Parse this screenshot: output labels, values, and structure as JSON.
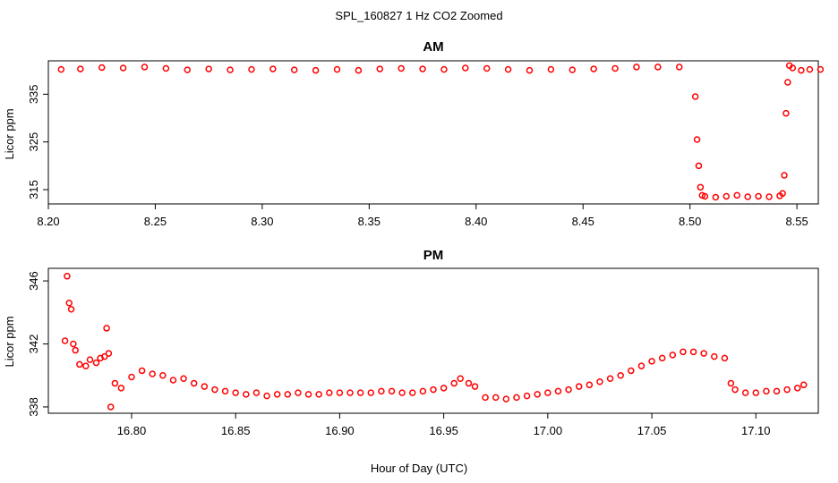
{
  "figure": {
    "title": "SPL_160827  1 Hz CO2 Zoomed",
    "xlabel": "Hour of Day (UTC)"
  },
  "chart_data": [
    {
      "type": "scatter",
      "title": "AM",
      "ylabel": "Licor ppm",
      "xlim": [
        8.2,
        8.56
      ],
      "ylim": [
        312,
        342
      ],
      "xticks": [
        "8.20",
        "8.25",
        "8.30",
        "8.35",
        "8.40",
        "8.45",
        "8.50",
        "8.55"
      ],
      "yticks": [
        "315",
        "325",
        "335"
      ],
      "grid": false,
      "marker_color": "#ff0000",
      "series": [
        {
          "x": [
            8.206,
            8.215,
            8.225,
            8.235,
            8.245,
            8.255,
            8.265,
            8.275,
            8.285,
            8.295,
            8.305,
            8.315,
            8.325,
            8.335,
            8.345,
            8.355,
            8.365,
            8.375,
            8.385,
            8.395,
            8.405,
            8.415,
            8.425,
            8.435,
            8.445,
            8.455,
            8.465,
            8.475,
            8.485,
            8.495,
            8.5025,
            8.5033,
            8.5041,
            8.5049,
            8.5057,
            8.507,
            8.512,
            8.517,
            8.522,
            8.527,
            8.532,
            8.537,
            8.542,
            8.5433,
            8.5441,
            8.5449,
            8.5457,
            8.5465,
            8.548,
            8.552,
            8.556,
            8.561
          ],
          "y": [
            340.2,
            340.3,
            340.6,
            340.5,
            340.7,
            340.4,
            340.1,
            340.3,
            340.1,
            340.2,
            340.3,
            340.1,
            340.0,
            340.2,
            340.0,
            340.3,
            340.4,
            340.3,
            340.2,
            340.5,
            340.4,
            340.2,
            340.0,
            340.2,
            340.1,
            340.3,
            340.4,
            340.7,
            340.7,
            340.7,
            334.5,
            325.5,
            320.0,
            315.5,
            313.8,
            313.6,
            313.4,
            313.6,
            313.8,
            313.5,
            313.6,
            313.5,
            313.7,
            314.2,
            318.0,
            331.0,
            337.5,
            341.0,
            340.5,
            340.0,
            340.2,
            340.2
          ]
        }
      ]
    },
    {
      "type": "scatter",
      "title": "PM",
      "ylabel": "Licor ppm",
      "xlim": [
        16.76,
        17.13
      ],
      "ylim": [
        337.6,
        346.8
      ],
      "xticks": [
        "16.80",
        "16.85",
        "16.90",
        "16.95",
        "17.00",
        "17.05",
        "17.10"
      ],
      "yticks": [
        "338",
        "342",
        "346"
      ],
      "grid": false,
      "marker_color": "#ff0000",
      "series": [
        {
          "x": [
            16.768,
            16.769,
            16.77,
            16.771,
            16.772,
            16.773,
            16.775,
            16.778,
            16.78,
            16.783,
            16.785,
            16.787,
            16.788,
            16.789,
            16.79,
            16.792,
            16.795,
            16.8,
            16.805,
            16.81,
            16.815,
            16.82,
            16.825,
            16.83,
            16.835,
            16.84,
            16.845,
            16.85,
            16.855,
            16.86,
            16.865,
            16.87,
            16.875,
            16.88,
            16.885,
            16.89,
            16.895,
            16.9,
            16.905,
            16.91,
            16.915,
            16.92,
            16.925,
            16.93,
            16.935,
            16.94,
            16.945,
            16.95,
            16.955,
            16.958,
            16.962,
            16.965,
            16.97,
            16.975,
            16.98,
            16.985,
            16.99,
            16.995,
            17.0,
            17.005,
            17.01,
            17.015,
            17.02,
            17.025,
            17.03,
            17.035,
            17.04,
            17.045,
            17.05,
            17.055,
            17.06,
            17.065,
            17.07,
            17.075,
            17.08,
            17.085,
            17.088,
            17.09,
            17.095,
            17.1,
            17.105,
            17.11,
            17.115,
            17.12,
            17.123
          ],
          "y": [
            342.2,
            346.3,
            344.6,
            344.2,
            342.0,
            341.6,
            340.7,
            340.6,
            341.0,
            340.8,
            341.1,
            341.2,
            343.0,
            341.4,
            338.0,
            339.5,
            339.2,
            339.9,
            340.3,
            340.1,
            340.0,
            339.7,
            339.8,
            339.5,
            339.3,
            339.1,
            339.0,
            338.9,
            338.8,
            338.9,
            338.7,
            338.8,
            338.8,
            338.9,
            338.8,
            338.8,
            338.9,
            338.9,
            338.9,
            338.9,
            338.9,
            339.0,
            339.0,
            338.9,
            338.9,
            339.0,
            339.1,
            339.2,
            339.5,
            339.8,
            339.5,
            339.3,
            338.6,
            338.6,
            338.5,
            338.6,
            338.7,
            338.8,
            338.9,
            339.0,
            339.1,
            339.3,
            339.4,
            339.6,
            339.8,
            340.0,
            340.3,
            340.6,
            340.9,
            341.1,
            341.3,
            341.5,
            341.5,
            341.4,
            341.2,
            341.1,
            339.5,
            339.1,
            338.9,
            338.9,
            339.0,
            339.0,
            339.1,
            339.2,
            339.4
          ]
        }
      ]
    }
  ]
}
